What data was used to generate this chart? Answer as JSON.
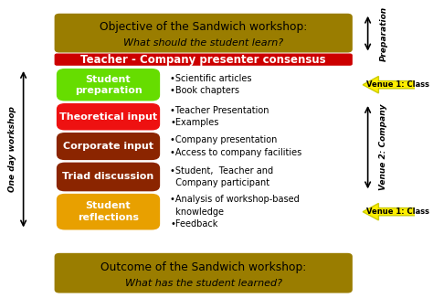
{
  "bg_color": "#ffffff",
  "title_box_color": "#9a7d00",
  "title_box_text": "Objective of the Sandwich workshop:",
  "title_box_subtext": "What should the student learn?",
  "consensus_box_color": "#cc0000",
  "consensus_text": "Teacher - Company presenter consensus",
  "outcome_box_color": "#9a7d00",
  "outcome_text": "Outcome of the Sandwich workshop:",
  "outcome_subtext": "What has the student learned?",
  "left_label": "One day workshop",
  "layers": [
    {
      "label": "Student\npreparation",
      "color": "#66dd00",
      "text_color": "#ffffff",
      "bullets": "•Scientific articles\n•Book chapters"
    },
    {
      "label": "Theoretical input",
      "color": "#ee1111",
      "text_color": "#ffffff",
      "bullets": "•Teacher Presentation\n•Examples"
    },
    {
      "label": "Corporate input",
      "color": "#8b2500",
      "text_color": "#ffffff",
      "bullets": "•Company presentation\n•Access to company facilities"
    },
    {
      "label": "Triad discussion",
      "color": "#8b2500",
      "text_color": "#ffffff",
      "bullets": "•Student,  Teacher and\n  Company participant"
    },
    {
      "label": "Student\nreflections",
      "color": "#e8a000",
      "text_color": "#ffffff",
      "bullets": "•Analysis of workshop-based\n  knowledge\n•Feedback"
    }
  ],
  "venue1_top_text": "Venue 1: Class",
  "venue2_text": "Venue 2: Company",
  "venue1_bot_text": "Venue 1: Class",
  "preparation_text": "Preparation",
  "arrow_color": "#ffee00",
  "arrow_edge_color": "#cccc00"
}
